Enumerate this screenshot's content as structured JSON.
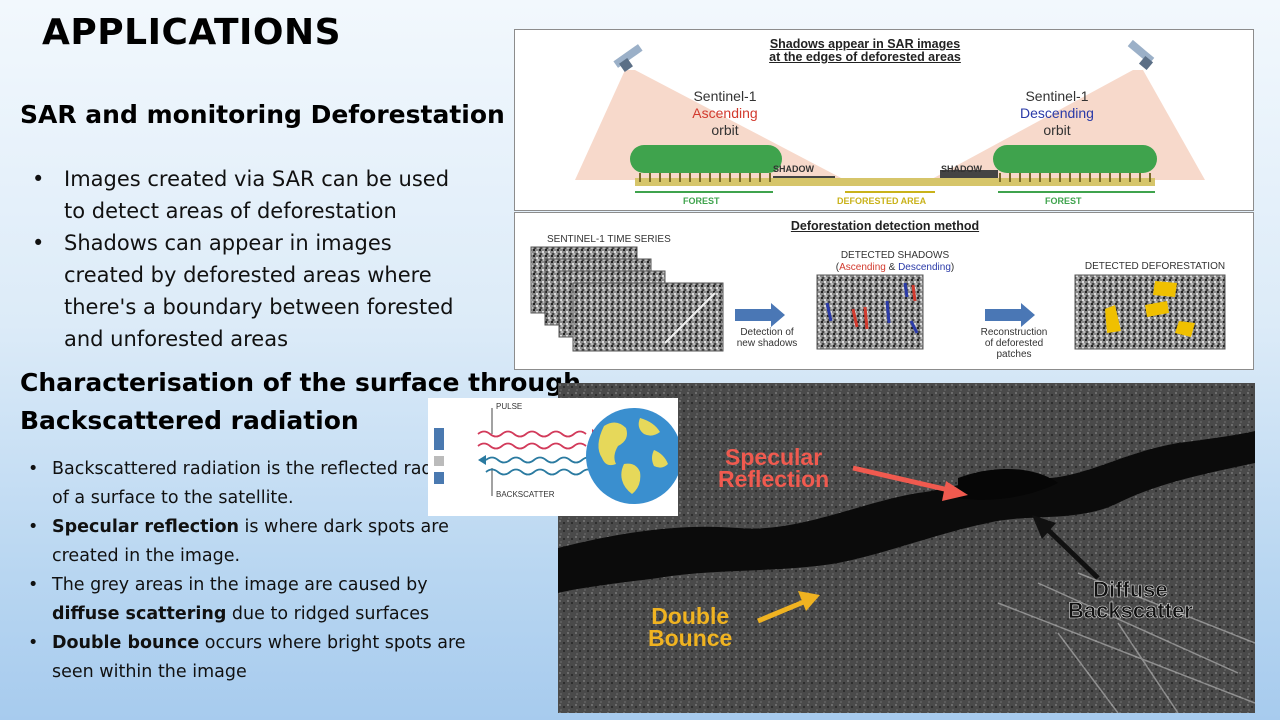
{
  "slide": {
    "title": "APPLICATIONS",
    "section1_heading": "SAR and monitoring Deforestation",
    "section1_bullets": [
      "Images created via SAR can be used to detect areas of deforestation",
      "Shadows can appear in images created by deforested areas where there's a boundary between forested and unforested areas"
    ],
    "section2_heading_line1": "Characterisation of the surface through",
    "section2_heading_line2": "Backscattered radiation",
    "section2_bullets": [
      {
        "bold": "",
        "rest": "Backscattered radiation is the reflected radiation of a surface to the satellite."
      },
      {
        "bold": "Specular reflection",
        "rest": " is where dark spots are created in the image."
      },
      {
        "pre": "The grey areas in the image are caused by ",
        "bold": "diffuse scattering",
        "rest": " due to ridged surfaces"
      },
      {
        "bold": "Double bounce",
        "rest": " occurs where bright spots are seen within the image"
      }
    ]
  },
  "diagram_top": {
    "title_line1": "Shadows appear in SAR images",
    "title_line2": "at the edges of deforested areas",
    "left_sat": "Sentinel-1",
    "left_orbit_dir": "Ascending",
    "left_orbit": "orbit",
    "right_sat": "Sentinel-1",
    "right_orbit_dir": "Descending",
    "right_orbit": "orbit",
    "shadow_left": "SHADOW",
    "shadow_right": "SHADOW",
    "forest_left": "FOREST",
    "deforested": "DEFORESTED AREA",
    "forest_right": "FOREST",
    "colors": {
      "ascending": "#d23a2e",
      "descending": "#2a3aa8",
      "forest_green": "#3fa34d",
      "deforested_yellow": "#c9b21a"
    }
  },
  "diagram_bottom": {
    "title": "Deforestation detection method",
    "time_series": "SENTINEL-1 TIME SERIES",
    "detected_shadows": "DETECTED SHADOWS",
    "ascending": "Ascending",
    "amp": "&",
    "descending": "Descending",
    "detected_deforestation": "DETECTED DEFORESTATION",
    "step1_line1": "Detection of",
    "step1_line2": "new shadows",
    "step2_line1": "Reconstruction",
    "step2_line2": "of deforested",
    "step2_line3": "patches"
  },
  "pulse_diagram": {
    "pulse": "PULSE",
    "backscatter": "BACKSCATTER"
  },
  "sar_image": {
    "specular_line1": "Specular",
    "specular_line2": "Reflection",
    "diffuse_line1": "Diffuse",
    "diffuse_line2": "Backscatter",
    "double_line1": "Double",
    "double_line2": "Bounce",
    "colors": {
      "specular": "#f05a4f",
      "diffuse": "#111111",
      "double": "#f0b321"
    }
  }
}
